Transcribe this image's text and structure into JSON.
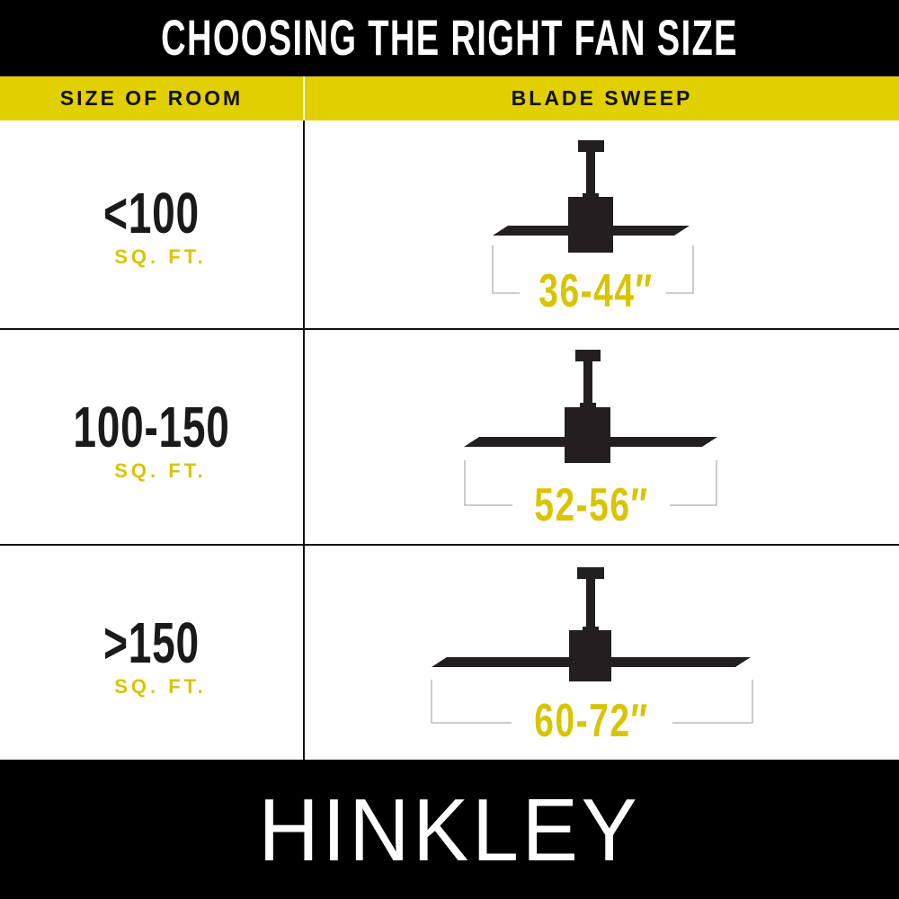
{
  "title": "CHOOSING THE RIGHT FAN SIZE",
  "columns": {
    "room": "SIZE OF ROOM",
    "sweep": "BLADE SWEEP"
  },
  "rows": [
    {
      "room": "<100",
      "unit": "SQ. FT.",
      "sweep": "36-44″"
    },
    {
      "room": "100-150",
      "unit": "SQ. FT.",
      "sweep": "52-56″"
    },
    {
      "room": ">150",
      "unit": "SQ. FT.",
      "sweep": "60-72″"
    }
  ],
  "brand": "HINKLEY",
  "colors": {
    "accent": "#e2cf00",
    "bar": "#000000",
    "fan": "#231f20"
  },
  "icons": [
    "ceiling-fan-icon"
  ]
}
